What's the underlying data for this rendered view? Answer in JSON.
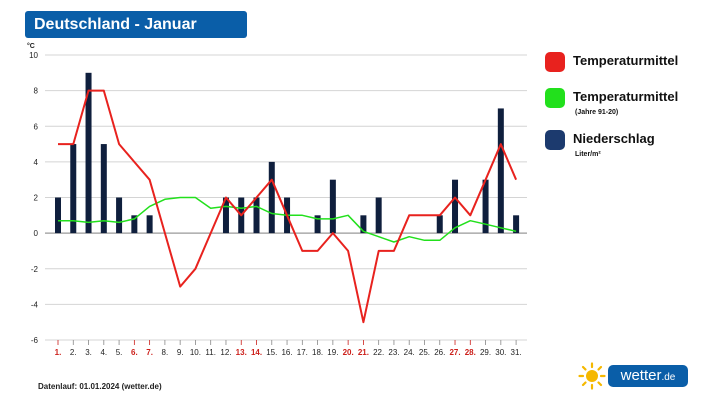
{
  "header": {
    "title": "Deutschland - Januar"
  },
  "legend": {
    "items": [
      {
        "label": "Temperaturmittel",
        "sub": "",
        "color": "#e8221e",
        "icon": "red-swatch"
      },
      {
        "label": "Temperaturmittel",
        "sub": "(Jahre 91-20)",
        "color": "#22e01c",
        "icon": "green-swatch"
      },
      {
        "label": "Niederschlag",
        "sub": "Liter/m²",
        "color": "#1c3a6e",
        "icon": "navy-swatch"
      }
    ]
  },
  "footer": {
    "text": "Datenlauf: 01.01.2024 (wetter.de)"
  },
  "logo": {
    "brand": "wetter",
    "tld": ".de"
  },
  "chart_data": {
    "type": "bar",
    "title": "Deutschland - Januar",
    "ylabel": "°C",
    "ylim": [
      -6,
      10
    ],
    "yticks": [
      -6,
      -4,
      -2,
      0,
      2,
      4,
      6,
      8,
      10
    ],
    "categories": [
      "1.",
      "2.",
      "3.",
      "4.",
      "5.",
      "6.",
      "7.",
      "8.",
      "9.",
      "10.",
      "11.",
      "12.",
      "13.",
      "14.",
      "15.",
      "16.",
      "17.",
      "18.",
      "19.",
      "20.",
      "21.",
      "22.",
      "23.",
      "24.",
      "25.",
      "26.",
      "27.",
      "28.",
      "29.",
      "30.",
      "31."
    ],
    "highlighted_categories": [
      "1.",
      "6.",
      "7.",
      "13.",
      "14.",
      "20.",
      "21.",
      "27.",
      "28."
    ],
    "grid": true,
    "series": [
      {
        "name": "Niederschlag",
        "type": "bar",
        "color": "#0f1f3d",
        "values": [
          2,
          5,
          9,
          5,
          2,
          1,
          1,
          0,
          0,
          0,
          0,
          2,
          2,
          2,
          4,
          2,
          0,
          1,
          3,
          0,
          1,
          2,
          0,
          0,
          0,
          1,
          3,
          0,
          3,
          7,
          1
        ]
      },
      {
        "name": "Temperaturmittel",
        "type": "line",
        "color": "#e8221e",
        "values": [
          5,
          5,
          8,
          8,
          5,
          4,
          3,
          0,
          -3,
          -2,
          0,
          2,
          1,
          2,
          3,
          1,
          -1,
          -1,
          0,
          -1,
          -5,
          -1,
          -1,
          1,
          1,
          1,
          2,
          1,
          3,
          5,
          3
        ]
      },
      {
        "name": "Temperaturmittel (Jahre 91-20)",
        "type": "line",
        "color": "#22e01c",
        "values": [
          0.7,
          0.7,
          0.6,
          0.7,
          0.6,
          0.8,
          1.5,
          1.9,
          2.0,
          2.0,
          1.4,
          1.5,
          1.4,
          1.5,
          1.1,
          1.0,
          1.0,
          0.8,
          0.8,
          1.0,
          0.1,
          -0.2,
          -0.5,
          -0.2,
          -0.4,
          -0.4,
          0.3,
          0.7,
          0.5,
          0.3,
          0.1
        ]
      }
    ]
  }
}
